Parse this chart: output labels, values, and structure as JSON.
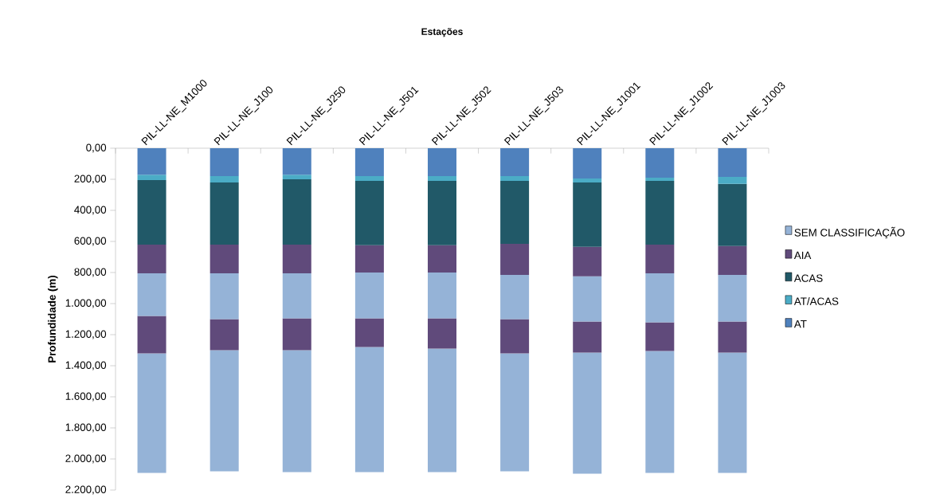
{
  "chart_data": {
    "type": "bar",
    "stacked": true,
    "xlabel": "Estações",
    "ylabel": "Profundidade (m)",
    "categories": [
      "PIL-LL-NE_M1000",
      "PIL-LL-NE_J100",
      "PIL-LL-NE_J250",
      "PIL-LL-NE_J501",
      "PIL-LL-NE_J502",
      "PIL-LL-NE_J503",
      "PIL-LL-NE_J1001",
      "PIL-LL-NE_J1002",
      "PIL-LL-NE_J1003"
    ],
    "series": [
      {
        "name": "AT",
        "color": "#4f81bd",
        "values": [
          170,
          180,
          170,
          180,
          180,
          180,
          195,
          190,
          185
        ]
      },
      {
        "name": "AT/ACAS",
        "color": "#4bacc6",
        "values": [
          35,
          40,
          30,
          30,
          30,
          30,
          25,
          20,
          45
        ]
      },
      {
        "name": "ACAS",
        "color": "#215968",
        "values": [
          415,
          400,
          420,
          415,
          415,
          405,
          415,
          410,
          400
        ]
      },
      {
        "name": "AIA",
        "color": "#604a7b",
        "values": [
          185,
          185,
          185,
          175,
          175,
          200,
          190,
          185,
          185
        ]
      },
      {
        "name": "SEM CLASSIFICAÇÃO",
        "color": "#95b3d7",
        "values": [
          275,
          295,
          290,
          295,
          295,
          285,
          290,
          315,
          300
        ]
      },
      {
        "color": "#604a7b",
        "values": [
          240,
          200,
          205,
          185,
          195,
          220,
          200,
          185,
          200
        ]
      },
      {
        "color": "#95b3d7",
        "values": [
          770,
          780,
          785,
          805,
          795,
          760,
          780,
          785,
          775
        ]
      }
    ],
    "ylim": [
      2200,
      0
    ],
    "yticks": [
      {
        "value": 0,
        "label": "0,00"
      },
      {
        "value": 200,
        "label": "200,00"
      },
      {
        "value": 400,
        "label": "400,00"
      },
      {
        "value": 600,
        "label": "600,00"
      },
      {
        "value": 800,
        "label": "800,00"
      },
      {
        "value": 1000,
        "label": "1.000,00"
      },
      {
        "value": 1200,
        "label": "1.200,00"
      },
      {
        "value": 1400,
        "label": "1.400,00"
      },
      {
        "value": 1600,
        "label": "1.600,00"
      },
      {
        "value": 1800,
        "label": "1.800,00"
      },
      {
        "value": 2000,
        "label": "2.000,00"
      },
      {
        "value": 2200,
        "label": "2.200,00"
      }
    ],
    "legend": "right",
    "grid": false
  }
}
